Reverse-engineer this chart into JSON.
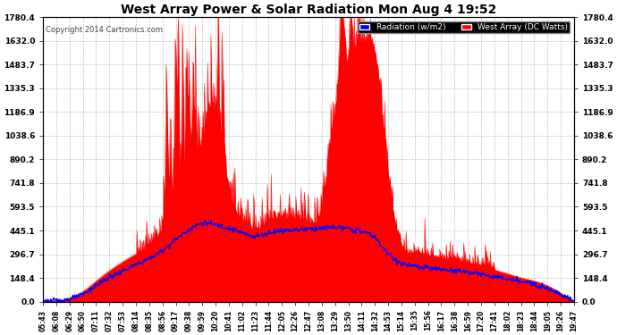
{
  "title": "West Array Power & Solar Radiation Mon Aug 4 19:52",
  "copyright": "Copyright 2014 Cartronics.com",
  "legend_radiation": "Radiation (w/m2)",
  "legend_west": "West Array (DC Watts)",
  "yticks": [
    0.0,
    148.4,
    296.7,
    445.1,
    593.5,
    741.8,
    890.2,
    1038.6,
    1186.9,
    1335.3,
    1483.7,
    1632.0,
    1780.4
  ],
  "ymax": 1780.4,
  "ymin": 0.0,
  "background_color": "#ffffff",
  "plot_bg_color": "#ffffff",
  "grid_color": "#c0c0c0",
  "red_color": "#ff0000",
  "blue_color": "#0000ff",
  "title_color": "#000000",
  "xtick_labels": [
    "05:43",
    "06:08",
    "06:29",
    "06:50",
    "07:11",
    "07:32",
    "07:53",
    "08:14",
    "08:35",
    "08:56",
    "09:17",
    "09:38",
    "09:59",
    "10:20",
    "10:41",
    "11:02",
    "11:23",
    "11:44",
    "12:05",
    "12:26",
    "12:47",
    "13:08",
    "13:29",
    "13:50",
    "14:11",
    "14:32",
    "14:53",
    "15:14",
    "15:35",
    "15:56",
    "16:17",
    "16:38",
    "16:59",
    "17:20",
    "17:41",
    "18:02",
    "18:23",
    "18:44",
    "19:05",
    "19:26",
    "19:47"
  ],
  "n_ticks": 41,
  "n_points": 820
}
